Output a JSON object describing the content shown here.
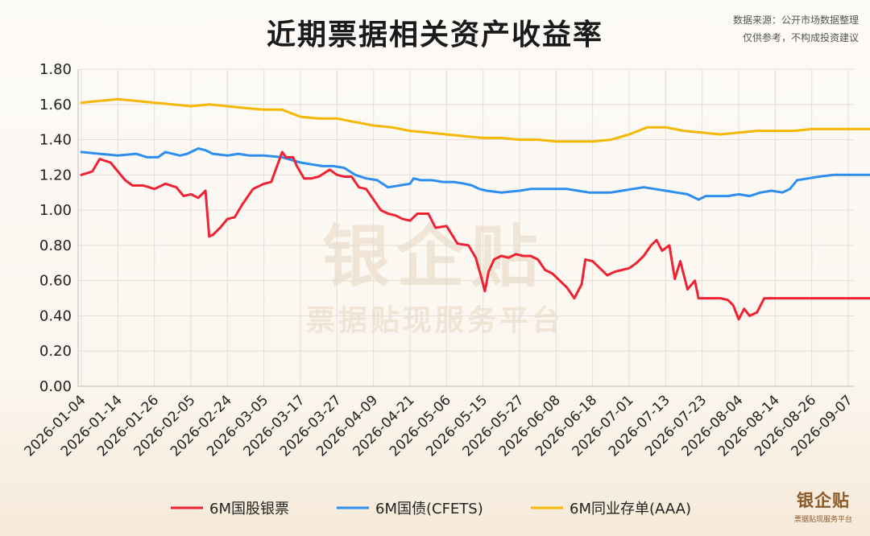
{
  "header": {
    "title": "近期票据相关资产收益率",
    "source_line1": "数据来源：公开市场数据整理",
    "source_line2": "仅供参考，不构成投资建议"
  },
  "watermark": {
    "brand": "银企贴",
    "tagline": "票据贴现服务平台"
  },
  "logo": {
    "brand": "银企贴",
    "tagline": "票据贴现服务平台"
  },
  "colors": {
    "red": "#ee2233",
    "blue": "#2d8ef0",
    "yellow": "#f5b800",
    "grid": "#e3ded7"
  },
  "chart_data": {
    "type": "line",
    "title": "近期票据相关资产收益率",
    "xlabel": "",
    "ylabel": "",
    "ylim": [
      0,
      1.8
    ],
    "yticks": [
      "0.00",
      "0.20",
      "0.40",
      "0.60",
      "0.80",
      "1.00",
      "1.20",
      "1.40",
      "1.60",
      "1.80"
    ],
    "x_ticks": [
      "2026-01-04",
      "2026-01-14",
      "2026-01-26",
      "2026-02-05",
      "2026-02-24",
      "2026-03-05",
      "2026-03-17",
      "2026-03-27",
      "2026-04-09",
      "2026-04-21",
      "2026-05-06",
      "2026-05-15",
      "2026-05-27",
      "2026-06-08",
      "2026-06-18",
      "2026-07-01",
      "2026-07-13",
      "2026-07-23",
      "2026-08-04",
      "2026-08-14",
      "2026-08-26",
      "2026-09-07"
    ],
    "grid": true,
    "legend_position": "bottom",
    "series": [
      {
        "name": "6M国股银票",
        "color": "#ee2233",
        "points": [
          [
            0,
            1.2
          ],
          [
            0.3,
            1.22
          ],
          [
            0.5,
            1.29
          ],
          [
            0.8,
            1.27
          ],
          [
            1.0,
            1.22
          ],
          [
            1.2,
            1.17
          ],
          [
            1.4,
            1.14
          ],
          [
            1.7,
            1.14
          ],
          [
            2.0,
            1.12
          ],
          [
            2.3,
            1.15
          ],
          [
            2.6,
            1.13
          ],
          [
            2.8,
            1.08
          ],
          [
            3.0,
            1.09
          ],
          [
            3.2,
            1.07
          ],
          [
            3.4,
            1.11
          ],
          [
            3.5,
            0.85
          ],
          [
            3.6,
            0.86
          ],
          [
            3.8,
            0.9
          ],
          [
            4.0,
            0.95
          ],
          [
            4.2,
            0.96
          ],
          [
            4.4,
            1.03
          ],
          [
            4.7,
            1.12
          ],
          [
            5.0,
            1.15
          ],
          [
            5.2,
            1.16
          ],
          [
            5.5,
            1.33
          ],
          [
            5.6,
            1.3
          ],
          [
            5.8,
            1.3
          ],
          [
            5.9,
            1.25
          ],
          [
            6.1,
            1.18
          ],
          [
            6.3,
            1.18
          ],
          [
            6.5,
            1.19
          ],
          [
            6.8,
            1.23
          ],
          [
            7.0,
            1.2
          ],
          [
            7.2,
            1.19
          ],
          [
            7.4,
            1.19
          ],
          [
            7.6,
            1.13
          ],
          [
            7.8,
            1.12
          ],
          [
            8.0,
            1.06
          ],
          [
            8.2,
            1.0
          ],
          [
            8.4,
            0.98
          ],
          [
            8.6,
            0.97
          ],
          [
            8.8,
            0.95
          ],
          [
            9.0,
            0.94
          ],
          [
            9.2,
            0.98
          ],
          [
            9.5,
            0.98
          ],
          [
            9.7,
            0.9
          ],
          [
            10.0,
            0.91
          ],
          [
            10.3,
            0.81
          ],
          [
            10.6,
            0.8
          ],
          [
            10.8,
            0.73
          ],
          [
            10.95,
            0.62
          ],
          [
            11.05,
            0.54
          ],
          [
            11.15,
            0.65
          ],
          [
            11.3,
            0.72
          ],
          [
            11.5,
            0.74
          ],
          [
            11.7,
            0.73
          ],
          [
            11.9,
            0.75
          ],
          [
            12.1,
            0.74
          ],
          [
            12.3,
            0.74
          ],
          [
            12.5,
            0.72
          ],
          [
            12.7,
            0.66
          ],
          [
            12.9,
            0.64
          ],
          [
            13.1,
            0.6
          ],
          [
            13.3,
            0.56
          ],
          [
            13.5,
            0.5
          ],
          [
            13.7,
            0.58
          ],
          [
            13.8,
            0.72
          ],
          [
            14.0,
            0.71
          ],
          [
            14.2,
            0.67
          ],
          [
            14.4,
            0.63
          ],
          [
            14.6,
            0.65
          ],
          [
            14.8,
            0.66
          ],
          [
            15.0,
            0.67
          ],
          [
            15.2,
            0.7
          ],
          [
            15.4,
            0.74
          ],
          [
            15.6,
            0.8
          ],
          [
            15.75,
            0.83
          ],
          [
            15.9,
            0.77
          ],
          [
            16.1,
            0.8
          ],
          [
            16.25,
            0.61
          ],
          [
            16.4,
            0.71
          ],
          [
            16.6,
            0.55
          ],
          [
            16.8,
            0.6
          ],
          [
            16.9,
            0.5
          ],
          [
            17.2,
            0.5
          ],
          [
            17.5,
            0.5
          ],
          [
            17.7,
            0.49
          ],
          [
            17.85,
            0.46
          ],
          [
            18.0,
            0.38
          ],
          [
            18.15,
            0.44
          ],
          [
            18.3,
            0.4
          ],
          [
            18.5,
            0.42
          ],
          [
            18.7,
            0.5
          ],
          [
            19.0,
            0.5
          ],
          [
            20.0,
            0.5
          ],
          [
            21.0,
            0.5
          ],
          [
            22.0,
            0.5
          ],
          [
            23.0,
            0.5
          ],
          [
            24.0,
            0.5
          ],
          [
            25.0,
            0.5
          ],
          [
            26.0,
            0.5
          ],
          [
            26.8,
            0.5
          ],
          [
            26.95,
            0.53
          ],
          [
            27.1,
            0.5
          ],
          [
            27.4,
            0.5
          ],
          [
            28.0,
            0.5
          ]
        ]
      },
      {
        "name": "6M国债(CFETS)",
        "color": "#2d8ef0",
        "points": [
          [
            0,
            1.33
          ],
          [
            0.5,
            1.32
          ],
          [
            1.0,
            1.31
          ],
          [
            1.5,
            1.32
          ],
          [
            1.8,
            1.3
          ],
          [
            2.1,
            1.3
          ],
          [
            2.3,
            1.33
          ],
          [
            2.5,
            1.32
          ],
          [
            2.7,
            1.31
          ],
          [
            2.9,
            1.32
          ],
          [
            3.2,
            1.35
          ],
          [
            3.4,
            1.34
          ],
          [
            3.6,
            1.32
          ],
          [
            4.0,
            1.31
          ],
          [
            4.3,
            1.32
          ],
          [
            4.6,
            1.31
          ],
          [
            5.0,
            1.31
          ],
          [
            5.5,
            1.3
          ],
          [
            6.0,
            1.27
          ],
          [
            6.3,
            1.26
          ],
          [
            6.6,
            1.25
          ],
          [
            6.9,
            1.25
          ],
          [
            7.2,
            1.24
          ],
          [
            7.5,
            1.2
          ],
          [
            7.8,
            1.18
          ],
          [
            8.1,
            1.17
          ],
          [
            8.4,
            1.13
          ],
          [
            8.7,
            1.14
          ],
          [
            9.0,
            1.15
          ],
          [
            9.1,
            1.18
          ],
          [
            9.3,
            1.17
          ],
          [
            9.6,
            1.17
          ],
          [
            9.9,
            1.16
          ],
          [
            10.2,
            1.16
          ],
          [
            10.5,
            1.15
          ],
          [
            10.7,
            1.14
          ],
          [
            10.9,
            1.12
          ],
          [
            11.1,
            1.11
          ],
          [
            11.5,
            1.1
          ],
          [
            12.0,
            1.11
          ],
          [
            12.3,
            1.12
          ],
          [
            12.6,
            1.12
          ],
          [
            13.0,
            1.12
          ],
          [
            13.3,
            1.12
          ],
          [
            13.6,
            1.11
          ],
          [
            13.9,
            1.1
          ],
          [
            14.2,
            1.1
          ],
          [
            14.5,
            1.1
          ],
          [
            14.8,
            1.11
          ],
          [
            15.1,
            1.12
          ],
          [
            15.4,
            1.13
          ],
          [
            15.7,
            1.12
          ],
          [
            16.0,
            1.11
          ],
          [
            16.3,
            1.1
          ],
          [
            16.6,
            1.09
          ],
          [
            16.9,
            1.06
          ],
          [
            17.1,
            1.08
          ],
          [
            17.4,
            1.08
          ],
          [
            17.7,
            1.08
          ],
          [
            18.0,
            1.09
          ],
          [
            18.3,
            1.08
          ],
          [
            18.6,
            1.1
          ],
          [
            18.9,
            1.11
          ],
          [
            19.2,
            1.1
          ],
          [
            19.4,
            1.12
          ],
          [
            19.6,
            1.17
          ],
          [
            19.9,
            1.18
          ],
          [
            20.2,
            1.19
          ],
          [
            20.6,
            1.2
          ],
          [
            21.0,
            1.2
          ],
          [
            21.5,
            1.2
          ],
          [
            22.0,
            1.2
          ],
          [
            22.5,
            1.19
          ],
          [
            23.0,
            1.19
          ],
          [
            23.3,
            1.2
          ],
          [
            23.6,
            1.19
          ],
          [
            23.9,
            1.2
          ],
          [
            24.2,
            1.21
          ],
          [
            24.5,
            1.22
          ],
          [
            24.8,
            1.25
          ],
          [
            25.0,
            1.26
          ],
          [
            25.3,
            1.27
          ],
          [
            25.6,
            1.26
          ],
          [
            26.0,
            1.24
          ],
          [
            26.5,
            1.23
          ],
          [
            27.0,
            1.23
          ],
          [
            27.5,
            1.23
          ],
          [
            28.0,
            1.23
          ]
        ]
      },
      {
        "name": "6M同业存单(AAA)",
        "color": "#f5b800",
        "points": [
          [
            0,
            1.61
          ],
          [
            0.5,
            1.62
          ],
          [
            1.0,
            1.63
          ],
          [
            1.5,
            1.62
          ],
          [
            2.0,
            1.61
          ],
          [
            2.5,
            1.6
          ],
          [
            3.0,
            1.59
          ],
          [
            3.5,
            1.6
          ],
          [
            4.0,
            1.59
          ],
          [
            4.5,
            1.58
          ],
          [
            5.0,
            1.57
          ],
          [
            5.5,
            1.57
          ],
          [
            6.0,
            1.53
          ],
          [
            6.5,
            1.52
          ],
          [
            7.0,
            1.52
          ],
          [
            7.5,
            1.5
          ],
          [
            8.0,
            1.48
          ],
          [
            8.5,
            1.47
          ],
          [
            9.0,
            1.45
          ],
          [
            9.5,
            1.44
          ],
          [
            10.0,
            1.43
          ],
          [
            10.5,
            1.42
          ],
          [
            11.0,
            1.41
          ],
          [
            11.5,
            1.41
          ],
          [
            12.0,
            1.4
          ],
          [
            12.5,
            1.4
          ],
          [
            13.0,
            1.39
          ],
          [
            13.5,
            1.39
          ],
          [
            14.0,
            1.39
          ],
          [
            14.5,
            1.4
          ],
          [
            15.0,
            1.43
          ],
          [
            15.5,
            1.47
          ],
          [
            16.0,
            1.47
          ],
          [
            16.5,
            1.45
          ],
          [
            17.0,
            1.44
          ],
          [
            17.5,
            1.43
          ],
          [
            18.0,
            1.44
          ],
          [
            18.5,
            1.45
          ],
          [
            19.0,
            1.45
          ],
          [
            19.5,
            1.45
          ],
          [
            20.0,
            1.46
          ],
          [
            20.5,
            1.46
          ],
          [
            21.0,
            1.46
          ],
          [
            21.5,
            1.46
          ],
          [
            22.0,
            1.46
          ],
          [
            22.5,
            1.46
          ],
          [
            23.0,
            1.46
          ],
          [
            23.5,
            1.46
          ],
          [
            24.0,
            1.46
          ],
          [
            24.5,
            1.46
          ],
          [
            25.0,
            1.47
          ],
          [
            25.5,
            1.47
          ],
          [
            26.0,
            1.46
          ],
          [
            26.5,
            1.46
          ],
          [
            27.0,
            1.46
          ],
          [
            27.5,
            1.46
          ],
          [
            28.0,
            1.46
          ]
        ]
      }
    ]
  }
}
